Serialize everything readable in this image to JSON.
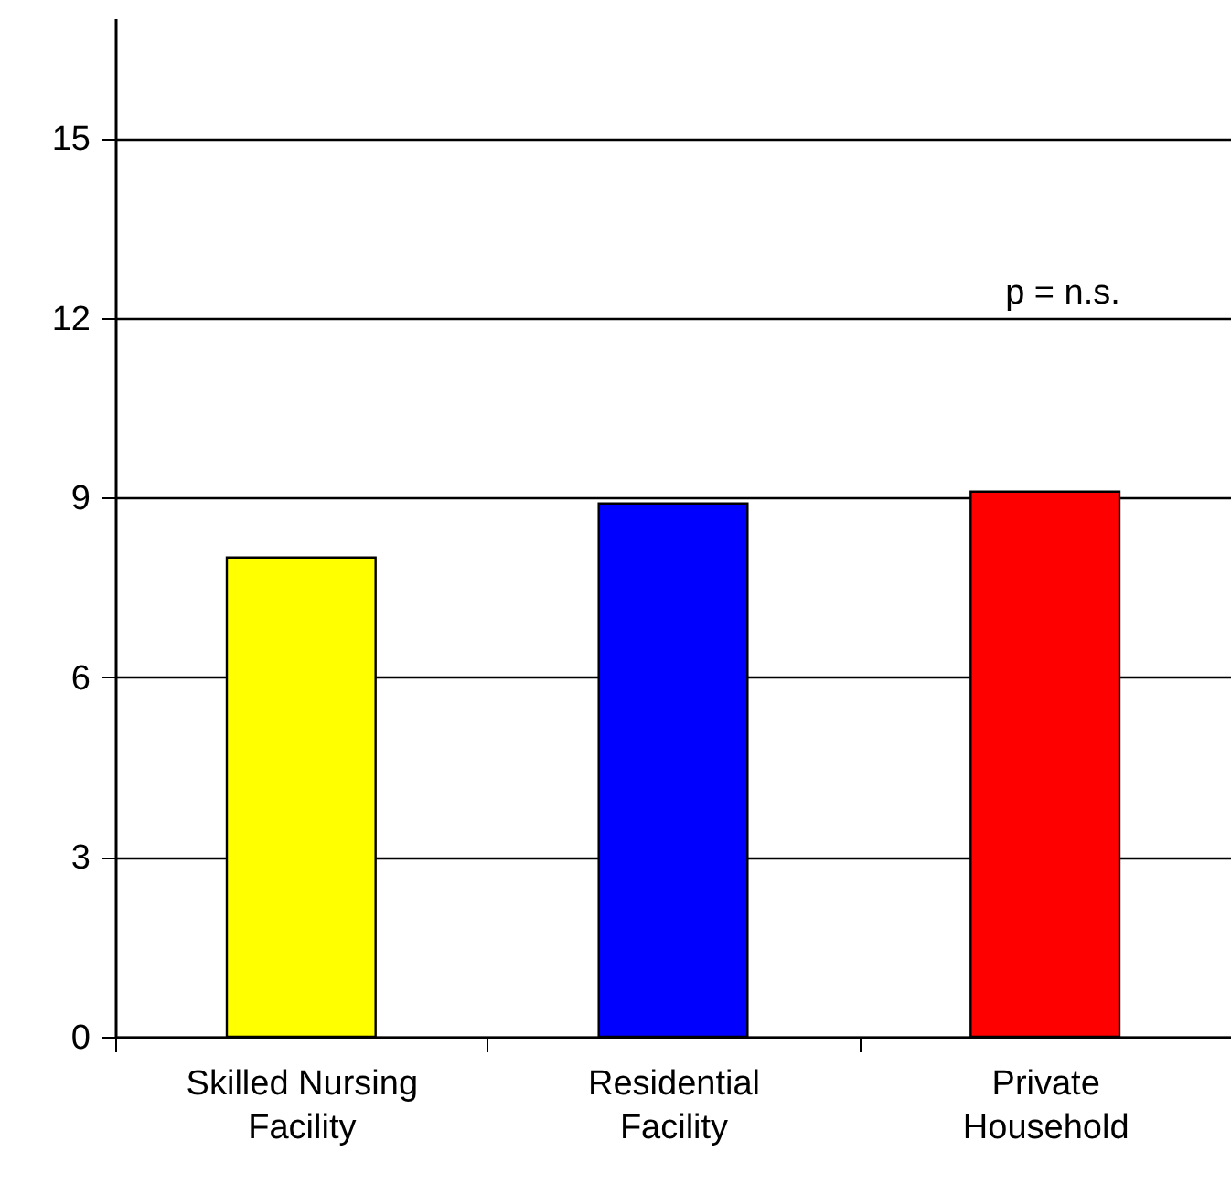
{
  "chart_data": {
    "type": "bar",
    "categories": [
      "Skilled Nursing Facility",
      "Residential Facility",
      "Private Household"
    ],
    "values": [
      8.0,
      8.9,
      9.1
    ],
    "colors": [
      "#ffff00",
      "#0000ff",
      "#ff0000"
    ],
    "ylim": [
      0,
      17
    ],
    "yticks": [
      0,
      3,
      6,
      9,
      12,
      15
    ],
    "grid": "y",
    "annotations": [
      "p = n.s."
    ]
  }
}
